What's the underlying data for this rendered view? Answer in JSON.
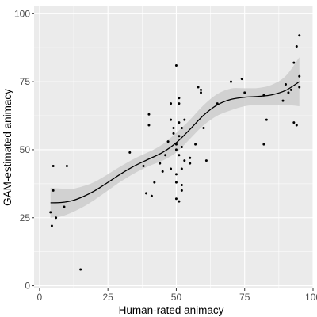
{
  "chart_data": {
    "type": "scatter",
    "xlabel": "Human-rated animacy",
    "ylabel": "GAM-estimated animacy",
    "xlim": [
      -2,
      100
    ],
    "ylim": [
      -1,
      103
    ],
    "x_ticks": [
      0,
      25,
      50,
      75,
      100
    ],
    "y_ticks": [
      0,
      25,
      50,
      75,
      100
    ],
    "x_tick_labels": [
      "0",
      "25",
      "50",
      "75",
      "100"
    ],
    "y_tick_labels": [
      "0",
      "25",
      "50",
      "75",
      "100"
    ],
    "grid": true,
    "legend": "none",
    "colors": {
      "panel": "#ebebeb",
      "grid_major": "#ffffff",
      "ribbon": "#cccccc",
      "line": "#000000",
      "points": "#000000"
    },
    "points": [
      [
        4,
        27
      ],
      [
        4.5,
        22
      ],
      [
        5,
        44
      ],
      [
        5,
        35
      ],
      [
        6,
        25
      ],
      [
        9,
        29
      ],
      [
        10,
        44
      ],
      [
        15,
        6
      ],
      [
        33,
        49
      ],
      [
        38,
        44
      ],
      [
        39,
        34
      ],
      [
        40,
        59
      ],
      [
        40,
        63
      ],
      [
        41,
        33
      ],
      [
        42,
        38
      ],
      [
        44,
        45
      ],
      [
        45,
        42
      ],
      [
        46,
        48
      ],
      [
        47,
        53
      ],
      [
        48,
        43
      ],
      [
        48,
        67
      ],
      [
        48,
        61
      ],
      [
        49,
        56
      ],
      [
        49,
        58
      ],
      [
        50,
        81
      ],
      [
        50,
        52
      ],
      [
        50,
        50
      ],
      [
        50,
        41
      ],
      [
        50,
        38
      ],
      [
        50,
        32
      ],
      [
        51,
        69
      ],
      [
        51,
        67
      ],
      [
        51,
        55
      ],
      [
        51,
        60
      ],
      [
        51,
        48
      ],
      [
        51,
        31
      ],
      [
        52,
        58
      ],
      [
        52,
        51
      ],
      [
        52,
        43
      ],
      [
        52,
        37
      ],
      [
        52,
        35
      ],
      [
        53,
        61
      ],
      [
        53,
        46
      ],
      [
        55,
        47
      ],
      [
        55,
        45
      ],
      [
        57,
        52
      ],
      [
        58,
        73
      ],
      [
        59,
        72
      ],
      [
        59,
        71
      ],
      [
        60,
        58
      ],
      [
        61,
        46
      ],
      [
        65,
        67
      ],
      [
        70,
        75
      ],
      [
        74,
        76
      ],
      [
        75,
        71
      ],
      [
        82,
        70
      ],
      [
        82,
        52
      ],
      [
        83,
        61
      ],
      [
        89,
        68
      ],
      [
        90,
        74
      ],
      [
        91,
        71
      ],
      [
        92,
        72
      ],
      [
        93,
        60
      ],
      [
        93,
        82
      ],
      [
        94,
        59
      ],
      [
        94,
        88
      ],
      [
        95,
        92
      ],
      [
        95,
        77
      ],
      [
        95,
        73
      ]
    ],
    "smooth_fit": {
      "x": [
        4,
        8,
        12,
        16,
        20,
        25,
        30,
        35,
        40,
        45,
        50,
        55,
        60,
        65,
        70,
        75,
        80,
        85,
        90,
        95
      ],
      "y": [
        30.5,
        30.6,
        31.3,
        32.8,
        34.8,
        38.0,
        41.3,
        44.2,
        46.6,
        49.0,
        52.6,
        57.5,
        62.7,
        66.5,
        68.5,
        69.3,
        69.6,
        70.2,
        71.8,
        75.0
      ],
      "lower": [
        25,
        25.5,
        27,
        29,
        31.5,
        35,
        38.5,
        41.5,
        44,
        46,
        49,
        54,
        59,
        62.5,
        64.5,
        66,
        66.5,
        66.5,
        66.5,
        66
      ],
      "upper": [
        36,
        35.7,
        35.6,
        36.6,
        38.1,
        41,
        44.1,
        46.9,
        49.2,
        52,
        56.2,
        61,
        66.4,
        70.5,
        72.5,
        72.6,
        72.7,
        73.9,
        77.1,
        84
      ]
    }
  }
}
